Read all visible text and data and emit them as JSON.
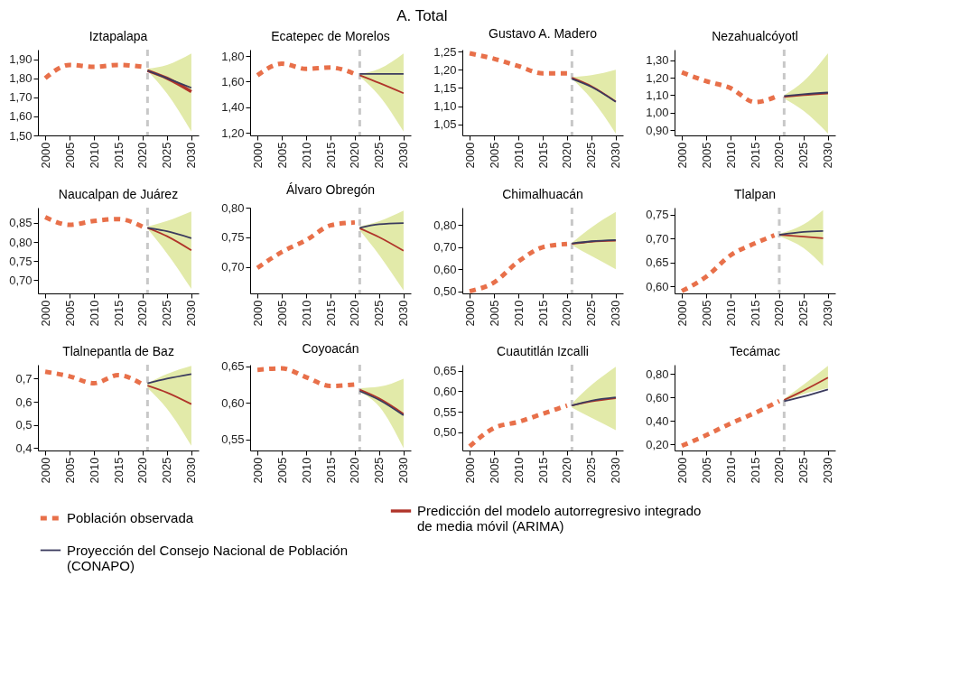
{
  "chart_data": [
    {
      "type": "line",
      "title": "Iztapalapa",
      "annotations": [
        "A. Total"
      ],
      "legend": "bottom",
      "grid": false,
      "xlim": [
        1998.5,
        2031.5
      ],
      "xticks": [
        2000,
        2005,
        2010,
        2015,
        2020,
        2025,
        2030
      ],
      "ylim": [
        1.5,
        1.95
      ],
      "yticks": [
        {
          "value": 1.5,
          "label": "1,50"
        },
        {
          "value": 1.6,
          "label": "1,60"
        },
        {
          "value": 1.7,
          "label": "1,70"
        },
        {
          "value": 1.8,
          "label": "1,80"
        },
        {
          "value": 1.9,
          "label": "1,90"
        }
      ],
      "ref_lines": [
        {
          "axis": "x",
          "value": 2021,
          "color": "#c8c8c8",
          "line_style": "dashed"
        }
      ],
      "series": [
        {
          "name": "Población observada",
          "color": "#e8704a",
          "line_style": "dashed",
          "x": [
            2000,
            2005,
            2010,
            2015,
            2020
          ],
          "values": [
            1.8,
            1.87,
            1.86,
            1.87,
            1.86
          ]
        },
        {
          "name": "Predicción del modelo autorregresivo integrado de media móvil (ARIMA)",
          "color": "#b0342a",
          "line_style": "solid",
          "x": [
            2021,
            2025,
            2030
          ],
          "values": [
            1.84,
            1.8,
            1.73
          ],
          "lower": [
            1.84,
            1.72,
            1.52
          ],
          "upper": [
            1.85,
            1.87,
            1.93
          ]
        },
        {
          "name": "Proyección del Consejo Nacional de Población (CONAPO)",
          "color": "#3b3b5e",
          "line_style": "solid",
          "x": [
            2021,
            2025,
            2030
          ],
          "values": [
            1.84,
            1.8,
            1.75
          ]
        }
      ]
    },
    {
      "type": "line",
      "title": "Ecatepec de Morelos",
      "grid": false,
      "xlim": [
        1998.5,
        2031.5
      ],
      "xticks": [
        2000,
        2005,
        2010,
        2015,
        2020,
        2025,
        2030
      ],
      "ylim": [
        1.18,
        1.85
      ],
      "yticks": [
        {
          "value": 1.2,
          "label": "1,20"
        },
        {
          "value": 1.4,
          "label": "1,40"
        },
        {
          "value": 1.6,
          "label": "1,60"
        },
        {
          "value": 1.8,
          "label": "1,80"
        }
      ],
      "ref_lines": [
        {
          "axis": "x",
          "value": 2021,
          "color": "#c8c8c8",
          "line_style": "dashed"
        }
      ],
      "series": [
        {
          "name": "Población observada",
          "color": "#e8704a",
          "line_style": "dashed",
          "x": [
            2000,
            2005,
            2010,
            2015,
            2020
          ],
          "values": [
            1.65,
            1.74,
            1.7,
            1.71,
            1.66
          ]
        },
        {
          "name": "Predicción del modelo autorregresivo integrado de media móvil (ARIMA)",
          "color": "#b0342a",
          "line_style": "solid",
          "x": [
            2021,
            2025,
            2030
          ],
          "values": [
            1.65,
            1.59,
            1.51
          ],
          "lower": [
            1.64,
            1.49,
            1.21
          ],
          "upper": [
            1.66,
            1.7,
            1.82
          ]
        },
        {
          "name": "Proyección del Consejo Nacional de Población (CONAPO)",
          "color": "#3b3b5e",
          "line_style": "solid",
          "x": [
            2021,
            2025,
            2030
          ],
          "values": [
            1.66,
            1.66,
            1.66
          ]
        }
      ]
    },
    {
      "type": "line",
      "title": "Gustavo A. Madero",
      "grid": false,
      "xlim": [
        1998.5,
        2031.5
      ],
      "xticks": [
        2000,
        2005,
        2010,
        2015,
        2020,
        2025,
        2030
      ],
      "ylim": [
        1.02,
        1.255
      ],
      "yticks": [
        {
          "value": 1.05,
          "label": "1,05"
        },
        {
          "value": 1.1,
          "label": "1,10"
        },
        {
          "value": 1.15,
          "label": "1,15"
        },
        {
          "value": 1.2,
          "label": "1,20"
        },
        {
          "value": 1.25,
          "label": "1,25"
        }
      ],
      "ref_lines": [
        {
          "axis": "x",
          "value": 2021,
          "color": "#c8c8c8",
          "line_style": "dashed"
        }
      ],
      "series": [
        {
          "name": "Población observada",
          "color": "#e8704a",
          "line_style": "dashed",
          "x": [
            2000,
            2005,
            2010,
            2015,
            2020
          ],
          "values": [
            1.245,
            1.23,
            1.21,
            1.19,
            1.19
          ]
        },
        {
          "name": "Predicción del modelo autorregresivo integrado de media móvil (ARIMA)",
          "color": "#b0342a",
          "line_style": "solid",
          "x": [
            2021,
            2025,
            2030
          ],
          "values": [
            1.178,
            1.155,
            1.113
          ],
          "lower": [
            1.175,
            1.12,
            1.025
          ],
          "upper": [
            1.18,
            1.185,
            1.2
          ]
        },
        {
          "name": "Proyección del Consejo Nacional de Población (CONAPO)",
          "color": "#3b3b5e",
          "line_style": "solid",
          "x": [
            2021,
            2025,
            2030
          ],
          "values": [
            1.175,
            1.153,
            1.112
          ]
        }
      ]
    },
    {
      "type": "line",
      "title": "Nezahualcóyotl",
      "grid": false,
      "xlim": [
        1998.5,
        2031.5
      ],
      "xticks": [
        2000,
        2005,
        2010,
        2015,
        2020,
        2025,
        2030
      ],
      "ylim": [
        0.87,
        1.36
      ],
      "yticks": [
        {
          "value": 0.9,
          "label": "0,90"
        },
        {
          "value": 1.0,
          "label": "1,00"
        },
        {
          "value": 1.1,
          "label": "1,10"
        },
        {
          "value": 1.2,
          "label": "1,20"
        },
        {
          "value": 1.3,
          "label": "1,30"
        }
      ],
      "ref_lines": [
        {
          "axis": "x",
          "value": 2021,
          "color": "#c8c8c8",
          "line_style": "dashed"
        }
      ],
      "series": [
        {
          "name": "Población observada",
          "color": "#e8704a",
          "line_style": "dashed",
          "x": [
            2000,
            2005,
            2010,
            2015,
            2020
          ],
          "values": [
            1.23,
            1.18,
            1.14,
            1.06,
            1.1
          ]
        },
        {
          "name": "Predicción del modelo autorregresivo integrado de media móvil (ARIMA)",
          "color": "#b0342a",
          "line_style": "solid",
          "x": [
            2021,
            2025,
            2030
          ],
          "values": [
            1.09,
            1.1,
            1.11
          ],
          "lower": [
            1.08,
            1.01,
            0.88
          ],
          "upper": [
            1.1,
            1.18,
            1.34
          ]
        },
        {
          "name": "Proyección del Consejo Nacional de Población (CONAPO)",
          "color": "#3b3b5e",
          "line_style": "solid",
          "x": [
            2021,
            2025,
            2030
          ],
          "values": [
            1.095,
            1.105,
            1.115
          ]
        }
      ]
    },
    {
      "type": "line",
      "title": "Naucalpan de Juárez",
      "grid": false,
      "xlim": [
        1998.5,
        2031.5
      ],
      "xticks": [
        2000,
        2005,
        2010,
        2015,
        2020,
        2025,
        2030
      ],
      "ylim": [
        0.665,
        0.89
      ],
      "yticks": [
        {
          "value": 0.7,
          "label": "0,70"
        },
        {
          "value": 0.75,
          "label": "0,75"
        },
        {
          "value": 0.8,
          "label": "0,80"
        },
        {
          "value": 0.85,
          "label": "0,85"
        }
      ],
      "ref_lines": [
        {
          "axis": "x",
          "value": 2021,
          "color": "#c8c8c8",
          "line_style": "dashed"
        }
      ],
      "series": [
        {
          "name": "Población observada",
          "color": "#e8704a",
          "line_style": "dashed",
          "x": [
            2000,
            2005,
            2010,
            2015,
            2020
          ],
          "values": [
            0.865,
            0.845,
            0.855,
            0.86,
            0.84
          ]
        },
        {
          "name": "Predicción del modelo autorregresivo integrado de media móvil (ARIMA)",
          "color": "#b0342a",
          "line_style": "solid",
          "x": [
            2021,
            2025,
            2030
          ],
          "values": [
            0.837,
            0.815,
            0.778
          ],
          "lower": [
            0.835,
            0.77,
            0.677
          ],
          "upper": [
            0.84,
            0.855,
            0.88
          ]
        },
        {
          "name": "Proyección del Consejo Nacional de Población (CONAPO)",
          "color": "#3b3b5e",
          "line_style": "solid",
          "x": [
            2021,
            2025,
            2030
          ],
          "values": [
            0.837,
            0.828,
            0.81
          ]
        }
      ]
    },
    {
      "type": "line",
      "title": "Álvaro Obregón",
      "grid": false,
      "xlim": [
        1998.5,
        2031.5
      ],
      "xticks": [
        2000,
        2005,
        2010,
        2015,
        2020,
        2025,
        2030
      ],
      "ylim": [
        0.655,
        0.8
      ],
      "yticks": [
        {
          "value": 0.7,
          "label": "0,70"
        },
        {
          "value": 0.75,
          "label": "0,75"
        },
        {
          "value": 0.8,
          "label": "0,80"
        }
      ],
      "ref_lines": [
        {
          "axis": "x",
          "value": 2021,
          "color": "#c8c8c8",
          "line_style": "dashed"
        }
      ],
      "series": [
        {
          "name": "Población observada",
          "color": "#e8704a",
          "line_style": "dashed",
          "x": [
            2000,
            2005,
            2010,
            2015,
            2020
          ],
          "values": [
            0.698,
            0.725,
            0.745,
            0.77,
            0.775
          ]
        },
        {
          "name": "Predicción del modelo autorregresivo integrado de media móvil (ARIMA)",
          "color": "#b0342a",
          "line_style": "solid",
          "x": [
            2021,
            2025,
            2030
          ],
          "values": [
            0.765,
            0.75,
            0.727
          ],
          "lower": [
            0.762,
            0.72,
            0.66
          ],
          "upper": [
            0.768,
            0.777,
            0.795
          ]
        },
        {
          "name": "Proyección del Consejo Nacional de Población (CONAPO)",
          "color": "#3b3b5e",
          "line_style": "solid",
          "x": [
            2021,
            2025,
            2030
          ],
          "values": [
            0.766,
            0.772,
            0.774
          ]
        }
      ]
    },
    {
      "type": "line",
      "title": "Chimalhuacán",
      "grid": false,
      "xlim": [
        1998.5,
        2031.5
      ],
      "xticks": [
        2000,
        2005,
        2010,
        2015,
        2020,
        2025,
        2030
      ],
      "ylim": [
        0.49,
        0.88
      ],
      "yticks": [
        {
          "value": 0.5,
          "label": "0,50"
        },
        {
          "value": 0.6,
          "label": "0,60"
        },
        {
          "value": 0.7,
          "label": "0,70"
        },
        {
          "value": 0.8,
          "label": "0,80"
        }
      ],
      "ref_lines": [
        {
          "axis": "x",
          "value": 2021,
          "color": "#c8c8c8",
          "line_style": "dashed"
        }
      ],
      "series": [
        {
          "name": "Población observada",
          "color": "#e8704a",
          "line_style": "dashed",
          "x": [
            2000,
            2005,
            2010,
            2015,
            2020
          ],
          "values": [
            0.5,
            0.54,
            0.635,
            0.7,
            0.715
          ]
        },
        {
          "name": "Predicción del modelo autorregresivo integrado de media móvil (ARIMA)",
          "color": "#b0342a",
          "line_style": "solid",
          "x": [
            2021,
            2025,
            2030
          ],
          "values": [
            0.715,
            0.725,
            0.73
          ],
          "lower": [
            0.71,
            0.66,
            0.6
          ],
          "upper": [
            0.72,
            0.79,
            0.86
          ]
        },
        {
          "name": "Proyección del Consejo Nacional de Población (CONAPO)",
          "color": "#3b3b5e",
          "line_style": "solid",
          "x": [
            2021,
            2025,
            2030
          ],
          "values": [
            0.717,
            0.727,
            0.733
          ]
        }
      ]
    },
    {
      "type": "line",
      "title": "Tlalpan",
      "grid": false,
      "xlim": [
        1998.5,
        2031.5
      ],
      "xticks": [
        2000,
        2005,
        2010,
        2015,
        2020,
        2025,
        2030
      ],
      "ylim": [
        0.585,
        0.765
      ],
      "yticks": [
        {
          "value": 0.6,
          "label": "0,60"
        },
        {
          "value": 0.65,
          "label": "0,65"
        },
        {
          "value": 0.7,
          "label": "0,70"
        },
        {
          "value": 0.75,
          "label": "0,75"
        }
      ],
      "ref_lines": [
        {
          "axis": "x",
          "value": 2020,
          "color": "#c8c8c8",
          "line_style": "dashed"
        }
      ],
      "series": [
        {
          "name": "Población observada",
          "color": "#e8704a",
          "line_style": "dashed",
          "x": [
            2000,
            2005,
            2010,
            2015,
            2019
          ],
          "values": [
            0.59,
            0.62,
            0.665,
            0.69,
            0.707
          ]
        },
        {
          "name": "Predicción del modelo autorregresivo integrado de media móvil (ARIMA)",
          "color": "#b0342a",
          "line_style": "solid",
          "x": [
            2020,
            2025,
            2029
          ],
          "values": [
            0.708,
            0.704,
            0.701
          ],
          "lower": [
            0.705,
            0.68,
            0.643
          ],
          "upper": [
            0.71,
            0.73,
            0.76
          ]
        },
        {
          "name": "Proyección del Consejo Nacional de Población (CONAPO)",
          "color": "#3b3b5e",
          "line_style": "solid",
          "x": [
            2020,
            2025,
            2029
          ],
          "values": [
            0.708,
            0.714,
            0.716
          ]
        }
      ]
    },
    {
      "type": "line",
      "title": "Tlalnepantla de Baz",
      "grid": false,
      "xlim": [
        1998.5,
        2031.5
      ],
      "xticks": [
        2000,
        2005,
        2010,
        2015,
        2020,
        2025,
        2030
      ],
      "ylim": [
        0.39,
        0.76
      ],
      "yticks": [
        {
          "value": 0.4,
          "label": "0,4"
        },
        {
          "value": 0.5,
          "label": "0,5"
        },
        {
          "value": 0.6,
          "label": "0,6"
        },
        {
          "value": 0.7,
          "label": "0,7"
        }
      ],
      "ref_lines": [
        {
          "axis": "x",
          "value": 2021,
          "color": "#c8c8c8",
          "line_style": "dashed"
        }
      ],
      "series": [
        {
          "name": "Población observada",
          "color": "#e8704a",
          "line_style": "dashed",
          "x": [
            2000,
            2005,
            2010,
            2015,
            2020
          ],
          "values": [
            0.73,
            0.71,
            0.68,
            0.715,
            0.675
          ]
        },
        {
          "name": "Predicción del modelo autorregresivo integrado de media móvil (ARIMA)",
          "color": "#b0342a",
          "line_style": "solid",
          "x": [
            2021,
            2025,
            2030
          ],
          "values": [
            0.67,
            0.64,
            0.59
          ],
          "lower": [
            0.66,
            0.57,
            0.41
          ],
          "upper": [
            0.68,
            0.72,
            0.755
          ]
        },
        {
          "name": "Proyección del Consejo Nacional de Población (CONAPO)",
          "color": "#3b3b5e",
          "line_style": "solid",
          "x": [
            2021,
            2025,
            2030
          ],
          "values": [
            0.68,
            0.7,
            0.72
          ]
        }
      ]
    },
    {
      "type": "line",
      "title": "Coyoacán",
      "grid": false,
      "xlim": [
        1998.5,
        2031.5
      ],
      "xticks": [
        2000,
        2005,
        2010,
        2015,
        2020,
        2025,
        2030
      ],
      "ylim": [
        0.535,
        0.652
      ],
      "yticks": [
        {
          "value": 0.55,
          "label": "0,55"
        },
        {
          "value": 0.6,
          "label": "0,60"
        },
        {
          "value": 0.65,
          "label": "0,65"
        }
      ],
      "ref_lines": [
        {
          "axis": "x",
          "value": 2021,
          "color": "#c8c8c8",
          "line_style": "dashed"
        }
      ],
      "series": [
        {
          "name": "Población observada",
          "color": "#e8704a",
          "line_style": "dashed",
          "x": [
            2000,
            2005,
            2010,
            2015,
            2020
          ],
          "values": [
            0.645,
            0.647,
            0.635,
            0.623,
            0.625
          ]
        },
        {
          "name": "Predicción del modelo autorregresivo integrado de media móvil (ARIMA)",
          "color": "#b0342a",
          "line_style": "solid",
          "x": [
            2021,
            2025,
            2030
          ],
          "values": [
            0.618,
            0.606,
            0.585
          ],
          "lower": [
            0.615,
            0.595,
            0.538
          ],
          "upper": [
            0.62,
            0.622,
            0.633
          ]
        },
        {
          "name": "Proyección del Consejo Nacional de Población (CONAPO)",
          "color": "#3b3b5e",
          "line_style": "solid",
          "x": [
            2021,
            2025,
            2030
          ],
          "values": [
            0.616,
            0.604,
            0.583
          ]
        }
      ]
    },
    {
      "type": "line",
      "title": "Cuautitlán Izcalli",
      "grid": false,
      "xlim": [
        1998.5,
        2031.5
      ],
      "xticks": [
        2000,
        2005,
        2010,
        2015,
        2020,
        2025,
        2030
      ],
      "ylim": [
        0.455,
        0.665
      ],
      "yticks": [
        {
          "value": 0.5,
          "label": "0,50"
        },
        {
          "value": 0.55,
          "label": "0,55"
        },
        {
          "value": 0.6,
          "label": "0,60"
        },
        {
          "value": 0.65,
          "label": "0,65"
        }
      ],
      "ref_lines": [
        {
          "axis": "x",
          "value": 2021,
          "color": "#c8c8c8",
          "line_style": "dashed"
        }
      ],
      "series": [
        {
          "name": "Población observada",
          "color": "#e8704a",
          "line_style": "dashed",
          "x": [
            2000,
            2005,
            2010,
            2015,
            2020
          ],
          "values": [
            0.465,
            0.51,
            0.525,
            0.545,
            0.565
          ]
        },
        {
          "name": "Predicción del modelo autorregresivo integrado de media móvil (ARIMA)",
          "color": "#b0342a",
          "line_style": "solid",
          "x": [
            2021,
            2025,
            2030
          ],
          "values": [
            0.565,
            0.575,
            0.583
          ],
          "lower": [
            0.56,
            0.535,
            0.505
          ],
          "upper": [
            0.57,
            0.615,
            0.66
          ]
        },
        {
          "name": "Proyección del Consejo Nacional de Población (CONAPO)",
          "color": "#3b3b5e",
          "line_style": "solid",
          "x": [
            2021,
            2025,
            2030
          ],
          "values": [
            0.565,
            0.577,
            0.585
          ]
        }
      ]
    },
    {
      "type": "line",
      "title": "Tecámac",
      "grid": false,
      "xlim": [
        1998.5,
        2031.5
      ],
      "xticks": [
        2000,
        2005,
        2010,
        2015,
        2020,
        2025,
        2030
      ],
      "ylim": [
        0.15,
        0.88
      ],
      "yticks": [
        {
          "value": 0.2,
          "label": "0,20"
        },
        {
          "value": 0.4,
          "label": "0,40"
        },
        {
          "value": 0.6,
          "label": "0,60"
        },
        {
          "value": 0.8,
          "label": "0,80"
        }
      ],
      "ref_lines": [
        {
          "axis": "x",
          "value": 2021,
          "color": "#c8c8c8",
          "line_style": "dashed"
        }
      ],
      "series": [
        {
          "name": "Población observada",
          "color": "#e8704a",
          "line_style": "dashed",
          "x": [
            2000,
            2005,
            2010,
            2015,
            2020
          ],
          "values": [
            0.19,
            0.28,
            0.38,
            0.47,
            0.57
          ]
        },
        {
          "name": "Predicción del modelo autorregresivo integrado de media móvil (ARIMA)",
          "color": "#b0342a",
          "line_style": "solid",
          "x": [
            2021,
            2025,
            2030
          ],
          "values": [
            0.58,
            0.66,
            0.77
          ],
          "lower": [
            0.57,
            0.63,
            0.68
          ],
          "upper": [
            0.59,
            0.71,
            0.87
          ]
        },
        {
          "name": "Proyección del Consejo Nacional de Población (CONAPO)",
          "color": "#3b3b5e",
          "line_style": "solid",
          "x": [
            2021,
            2025,
            2030
          ],
          "values": [
            0.57,
            0.61,
            0.67
          ]
        }
      ]
    }
  ]
}
